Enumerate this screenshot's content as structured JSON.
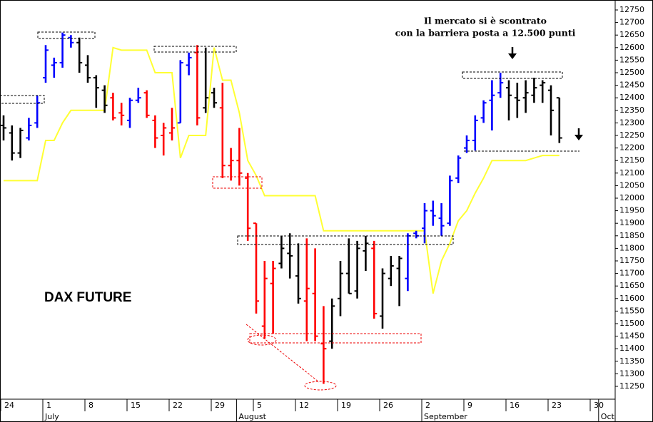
{
  "chart_data": {
    "type": "ohlc",
    "title": "DAX FUTURE",
    "annotation": [
      "Il mercato si è scontrato",
      "con la barriera posta a 12.500 punti"
    ],
    "categories": [
      "24",
      null,
      null,
      null,
      null,
      "1",
      null,
      null,
      null,
      null,
      "8",
      null,
      null,
      null,
      null,
      "15",
      null,
      null,
      null,
      null,
      "22",
      null,
      null,
      null,
      null,
      "29",
      null,
      null,
      null,
      null,
      "5",
      null,
      null,
      null,
      null,
      "12",
      null,
      null,
      null,
      null,
      "19",
      null,
      null,
      null,
      null,
      "26",
      null,
      null,
      null,
      null,
      "2",
      null,
      null,
      null,
      null,
      "9",
      null,
      null,
      null,
      null,
      "16",
      null,
      null,
      null,
      null,
      "23",
      null,
      null,
      null,
      null,
      "30",
      null
    ],
    "months": [
      null,
      null,
      null,
      null,
      null,
      "July",
      null,
      null,
      null,
      null,
      null,
      null,
      null,
      null,
      null,
      null,
      null,
      null,
      null,
      null,
      null,
      null,
      null,
      null,
      null,
      null,
      null,
      null,
      "August",
      null,
      null,
      null,
      null,
      null,
      null,
      null,
      null,
      null,
      null,
      null,
      null,
      null,
      null,
      null,
      null,
      null,
      null,
      null,
      null,
      null,
      "September",
      null,
      null,
      null,
      null,
      null,
      null,
      null,
      null,
      null,
      null,
      null,
      null,
      null,
      null,
      null,
      null,
      null,
      null,
      null,
      null,
      "October"
    ],
    "open": [
      12290,
      12260,
      12180,
      12240,
      12300,
      12480,
      12530,
      12540,
      12640,
      12620,
      12530,
      12480,
      12430,
      12400,
      12340,
      12310,
      12390,
      12420,
      12310,
      12250,
      12260,
      12300,
      12530,
      12580,
      12360,
      12420,
      12360,
      12130,
      12150,
      12080,
      11900,
      11490,
      11660,
      11740,
      11780,
      11690,
      11590,
      11620,
      11420,
      11430,
      11600,
      11700,
      11630,
      11790,
      11800,
      11530,
      11680,
      11720,
      11680,
      11860,
      11880,
      11950,
      11920,
      11900,
      12080,
      12200,
      12230,
      12320,
      12390,
      12420,
      12440,
      12400,
      12400,
      12410,
      12450,
      12430,
      12400,
      null,
      null,
      null,
      null,
      null
    ],
    "high": [
      12330,
      12290,
      12280,
      12320,
      12410,
      12610,
      12560,
      12660,
      12650,
      12640,
      12570,
      12490,
      12450,
      12420,
      12380,
      12400,
      12440,
      12430,
      12330,
      12300,
      12360,
      12550,
      12580,
      12610,
      12600,
      12440,
      12460,
      12200,
      12280,
      12100,
      11900,
      11750,
      11750,
      11850,
      11860,
      11820,
      11840,
      11800,
      11570,
      11600,
      11750,
      11840,
      11830,
      11850,
      11830,
      11720,
      11770,
      11770,
      11860,
      11870,
      11980,
      11990,
      11980,
      12090,
      12170,
      12250,
      12330,
      12390,
      12470,
      12500,
      12470,
      12460,
      12470,
      12480,
      12470,
      12450,
      12400,
      null,
      null,
      null,
      null,
      null
    ],
    "low": [
      12230,
      12150,
      12160,
      12230,
      12280,
      12460,
      12480,
      12520,
      12600,
      12500,
      12460,
      12360,
      12340,
      12310,
      12290,
      12280,
      12380,
      12320,
      12200,
      12170,
      12230,
      12300,
      12490,
      12290,
      12340,
      12360,
      12080,
      12070,
      12050,
      11830,
      11540,
      11440,
      11460,
      11720,
      11680,
      11580,
      11430,
      11430,
      11260,
      11400,
      11530,
      11620,
      11600,
      11710,
      11520,
      11480,
      11650,
      11570,
      11630,
      11840,
      11820,
      11890,
      11850,
      11890,
      12060,
      12180,
      12190,
      12300,
      12270,
      12400,
      12310,
      12320,
      12340,
      12380,
      12380,
      12250,
      12220,
      null,
      null,
      null,
      null,
      null
    ],
    "close": [
      12280,
      12180,
      12270,
      12290,
      12380,
      12590,
      12540,
      12650,
      12620,
      12540,
      12480,
      12440,
      12370,
      12320,
      12330,
      12390,
      12400,
      12330,
      12240,
      12280,
      12280,
      12540,
      12560,
      12320,
      12400,
      12380,
      12130,
      12150,
      12100,
      11880,
      11590,
      11680,
      11720,
      11800,
      11770,
      11600,
      11640,
      11450,
      11400,
      11570,
      11700,
      11620,
      11800,
      11820,
      11540,
      11700,
      11730,
      11760,
      11850,
      11850,
      11950,
      11930,
      11890,
      12070,
      12160,
      12230,
      12310,
      12380,
      12410,
      12460,
      12410,
      12390,
      12420,
      12440,
      12460,
      12350,
      12240,
      null,
      null,
      null,
      null,
      null
    ],
    "bar_colors": [
      "#000000",
      "#000000",
      "#000000",
      "#0000ff",
      "#0000ff",
      "#0000ff",
      "#0000ff",
      "#0000ff",
      "#0000ff",
      "#000000",
      "#000000",
      "#000000",
      "#000000",
      "#ff0000",
      "#ff0000",
      "#0000ff",
      "#0000ff",
      "#ff0000",
      "#ff0000",
      "#ff0000",
      "#ff0000",
      "#0000ff",
      "#0000ff",
      "#ff0000",
      "#000000",
      "#000000",
      "#ff0000",
      "#ff0000",
      "#ff0000",
      "#ff0000",
      "#ff0000",
      "#ff0000",
      "#ff0000",
      "#000000",
      "#000000",
      "#000000",
      "#ff0000",
      "#ff0000",
      "#ff0000",
      "#000000",
      "#000000",
      "#000000",
      "#000000",
      "#000000",
      "#ff0000",
      "#000000",
      "#000000",
      "#000000",
      "#0000ff",
      "#0000ff",
      "#0000ff",
      "#0000ff",
      "#0000ff",
      "#0000ff",
      "#0000ff",
      "#0000ff",
      "#0000ff",
      "#0000ff",
      "#0000ff",
      "#0000ff",
      "#000000",
      "#000000",
      "#000000",
      "#000000",
      "#000000",
      "#000000",
      "#000000"
    ],
    "line": {
      "color": "#ffff33",
      "values": [
        12070,
        12070,
        12070,
        12070,
        12070,
        12230,
        12230,
        12300,
        12350,
        12350,
        12350,
        12350,
        12350,
        12600,
        12590,
        12590,
        12590,
        12590,
        12500,
        12500,
        12500,
        12160,
        12250,
        12250,
        12250,
        12600,
        12470,
        12470,
        12340,
        12150,
        12090,
        12010,
        12010,
        12010,
        12010,
        12010,
        12010,
        12010,
        11870,
        11870,
        11870,
        11870,
        11870,
        11870,
        11870,
        11870,
        11870,
        11870,
        11870,
        11870,
        11870,
        11620,
        11750,
        11820,
        11910,
        11950,
        12020,
        12080,
        12150,
        12150,
        12150,
        12150,
        12150,
        12160,
        12170,
        12170,
        12170,
        null,
        null,
        null,
        null,
        null
      ]
    },
    "ylim": [
      11250,
      12750
    ],
    "yticks": [
      11250,
      11300,
      11350,
      11400,
      11450,
      11500,
      11550,
      11600,
      11650,
      11700,
      11750,
      11800,
      11850,
      11900,
      11950,
      12000,
      12050,
      12100,
      12150,
      12200,
      12250,
      12300,
      12350,
      12400,
      12450,
      12500,
      12550,
      12600,
      12650,
      12700,
      12750
    ]
  }
}
